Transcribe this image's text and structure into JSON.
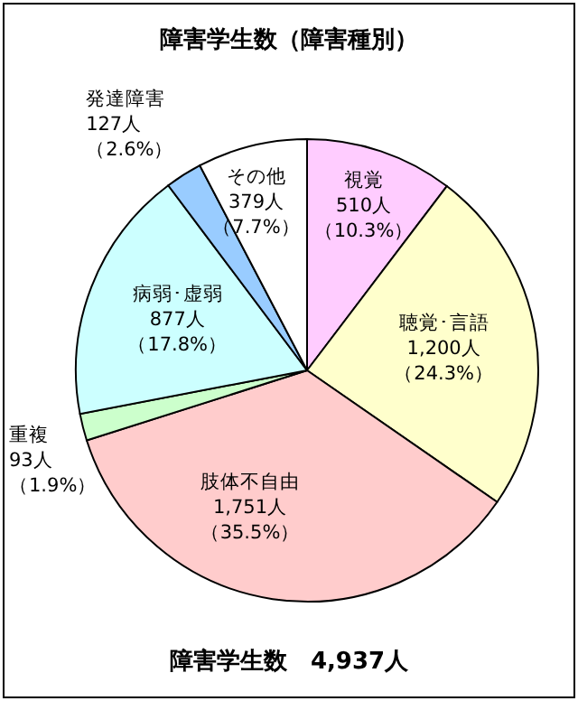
{
  "chart_data": {
    "type": "pie",
    "title": "障害学生数（障害種別）",
    "categories": [
      "視覚",
      "聴覚･言語",
      "肢体不自由",
      "重複",
      "病弱･虚弱",
      "発達障害",
      "その他"
    ],
    "values": [
      510,
      1200,
      1751,
      93,
      877,
      127,
      379
    ],
    "value_labels": [
      "510人（10.3%）",
      "1,200人（24.3%）",
      "1,751人（35.5%）",
      "93人（1.9%）",
      "877人（17.8%）",
      "127人（2.6%）",
      "379人（7.7%）"
    ],
    "colors": [
      "#ffccff",
      "#ffffcc",
      "#ffcccc",
      "#ccffcc",
      "#ccffff",
      "#99ccff",
      "#ffffff"
    ],
    "annotations": [
      "障害学生数　4,937人"
    ],
    "legend": false
  }
}
